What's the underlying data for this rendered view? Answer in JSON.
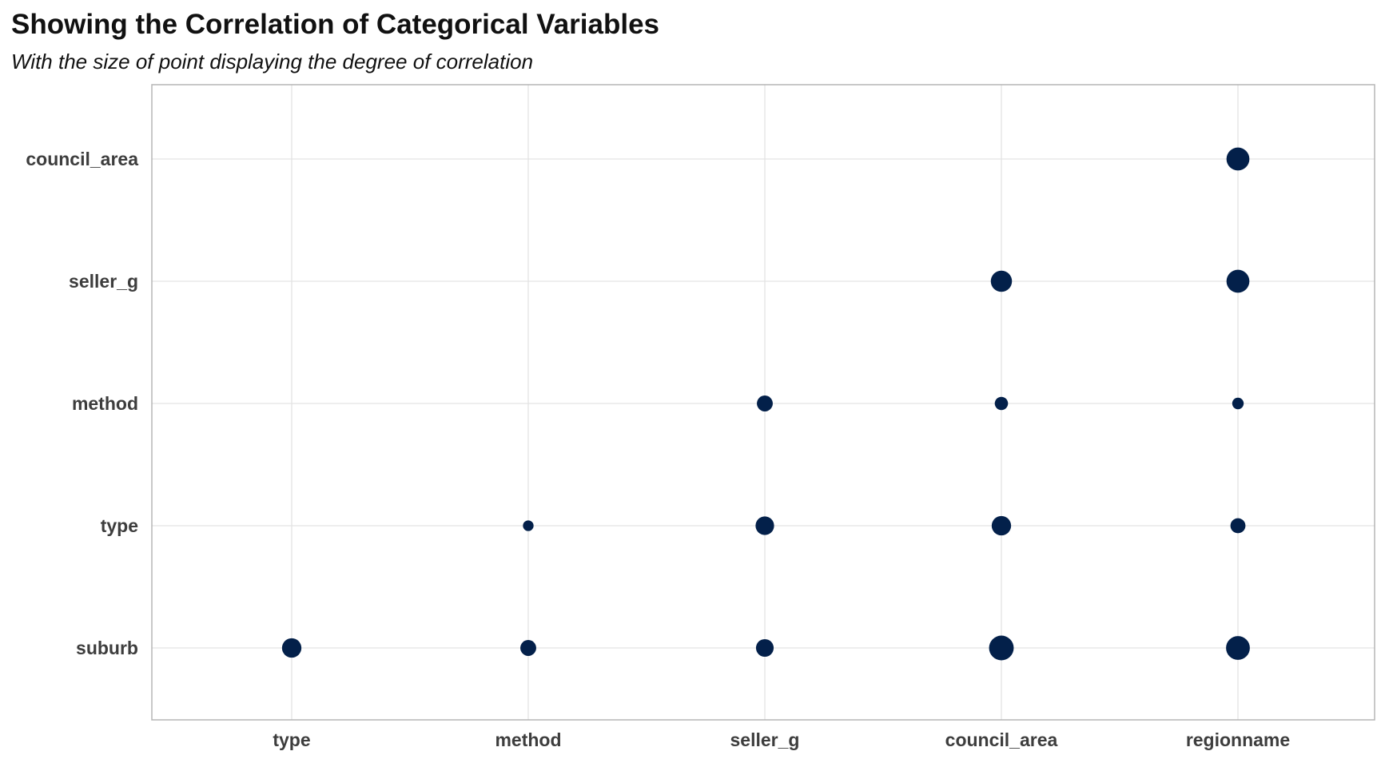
{
  "chart_data": {
    "type": "scatter",
    "title": "Showing the Correlation of Categorical Variables",
    "subtitle": "With the size of point displaying the degree of correlation",
    "xlabel": "",
    "ylabel": "",
    "x_categories": [
      "type",
      "method",
      "seller_g",
      "council_area",
      "regionname"
    ],
    "y_categories": [
      "suburb",
      "type",
      "method",
      "seller_g",
      "council_area"
    ],
    "size_meaning": "degree of correlation",
    "grid": true,
    "legend": "none",
    "point_color": "#03204a",
    "points": [
      {
        "x": "type",
        "y": "suburb",
        "value": 0.65
      },
      {
        "x": "method",
        "y": "suburb",
        "value": 0.45
      },
      {
        "x": "seller_g",
        "y": "suburb",
        "value": 0.55
      },
      {
        "x": "council_area",
        "y": "suburb",
        "value": 0.95
      },
      {
        "x": "regionname",
        "y": "suburb",
        "value": 0.9
      },
      {
        "x": "method",
        "y": "type",
        "value": 0.15
      },
      {
        "x": "seller_g",
        "y": "type",
        "value": 0.6
      },
      {
        "x": "council_area",
        "y": "type",
        "value": 0.65
      },
      {
        "x": "regionname",
        "y": "type",
        "value": 0.4
      },
      {
        "x": "seller_g",
        "y": "method",
        "value": 0.45
      },
      {
        "x": "council_area",
        "y": "method",
        "value": 0.3
      },
      {
        "x": "regionname",
        "y": "method",
        "value": 0.2
      },
      {
        "x": "council_area",
        "y": "seller_g",
        "value": 0.75
      },
      {
        "x": "regionname",
        "y": "seller_g",
        "value": 0.85
      },
      {
        "x": "regionname",
        "y": "council_area",
        "value": 0.85
      }
    ]
  }
}
